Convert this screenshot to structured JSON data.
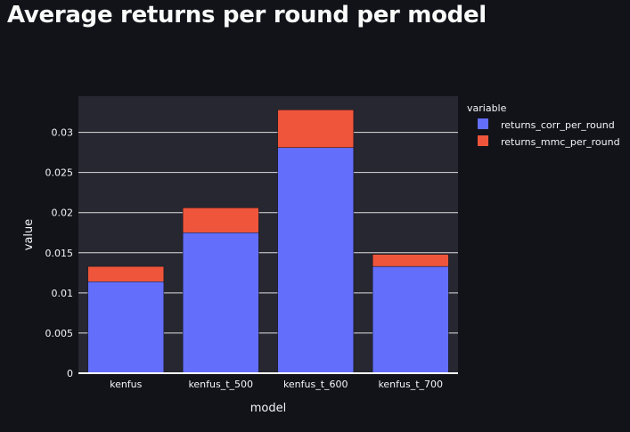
{
  "page": {
    "title": "Average returns per round per model"
  },
  "colors": {
    "background": "#111318",
    "plot_background": "#262730",
    "grid": "#ffffff",
    "text": "#f2f5fa"
  },
  "chart_data": {
    "type": "bar",
    "barmode": "stack",
    "title": "",
    "xlabel": "model",
    "ylabel": "value",
    "categories": [
      "kenfus",
      "kenfus_t_500",
      "kenfus_t_600",
      "kenfus_t_700"
    ],
    "series": [
      {
        "name": "returns_corr_per_round",
        "color": "#636efa",
        "values": [
          0.0114,
          0.0175,
          0.0281,
          0.0133
        ]
      },
      {
        "name": "returns_mmc_per_round",
        "color": "#ef553b",
        "values": [
          0.0019,
          0.0031,
          0.0047,
          0.0015
        ]
      }
    ],
    "ylim": [
      0,
      0.0345
    ],
    "yticks": [
      0,
      0.005,
      0.01,
      0.015,
      0.02,
      0.025,
      0.03
    ],
    "ytick_labels": [
      "0",
      "0.005",
      "0.01",
      "0.015",
      "0.02",
      "0.025",
      "0.03"
    ],
    "grid": true,
    "legend": {
      "title": "variable",
      "placement": "top-right, outside plot"
    }
  }
}
